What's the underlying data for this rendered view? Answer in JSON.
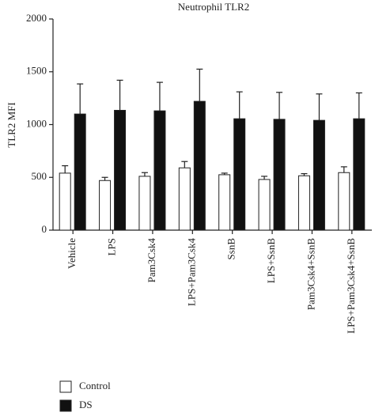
{
  "chart_data": {
    "type": "bar",
    "title": "Neutrophil TLR2",
    "y_label": "TLR2 MFI",
    "categories": [
      "Vehicle",
      "LPS",
      "Pam3Csk4",
      "LPS+Pam3Csk4",
      "SsnB",
      "LPS+SsnB",
      "Pam3Csk4+SsnB",
      "LPS+Pam3Csk4+SsnB"
    ],
    "series": [
      {
        "name": "Control",
        "color": "#ffffff",
        "values": [
          540,
          470,
          510,
          590,
          525,
          480,
          515,
          545
        ],
        "errors": [
          70,
          30,
          35,
          60,
          15,
          30,
          20,
          55
        ]
      },
      {
        "name": "DS",
        "color": "#111111",
        "values": [
          1100,
          1135,
          1130,
          1220,
          1055,
          1050,
          1040,
          1055
        ],
        "errors": [
          285,
          285,
          270,
          305,
          255,
          255,
          250,
          245
        ]
      }
    ],
    "ylim": [
      0,
      2000
    ],
    "yticks": [
      0,
      500,
      1000,
      1500,
      2000
    ],
    "legend": "bottom-left"
  }
}
